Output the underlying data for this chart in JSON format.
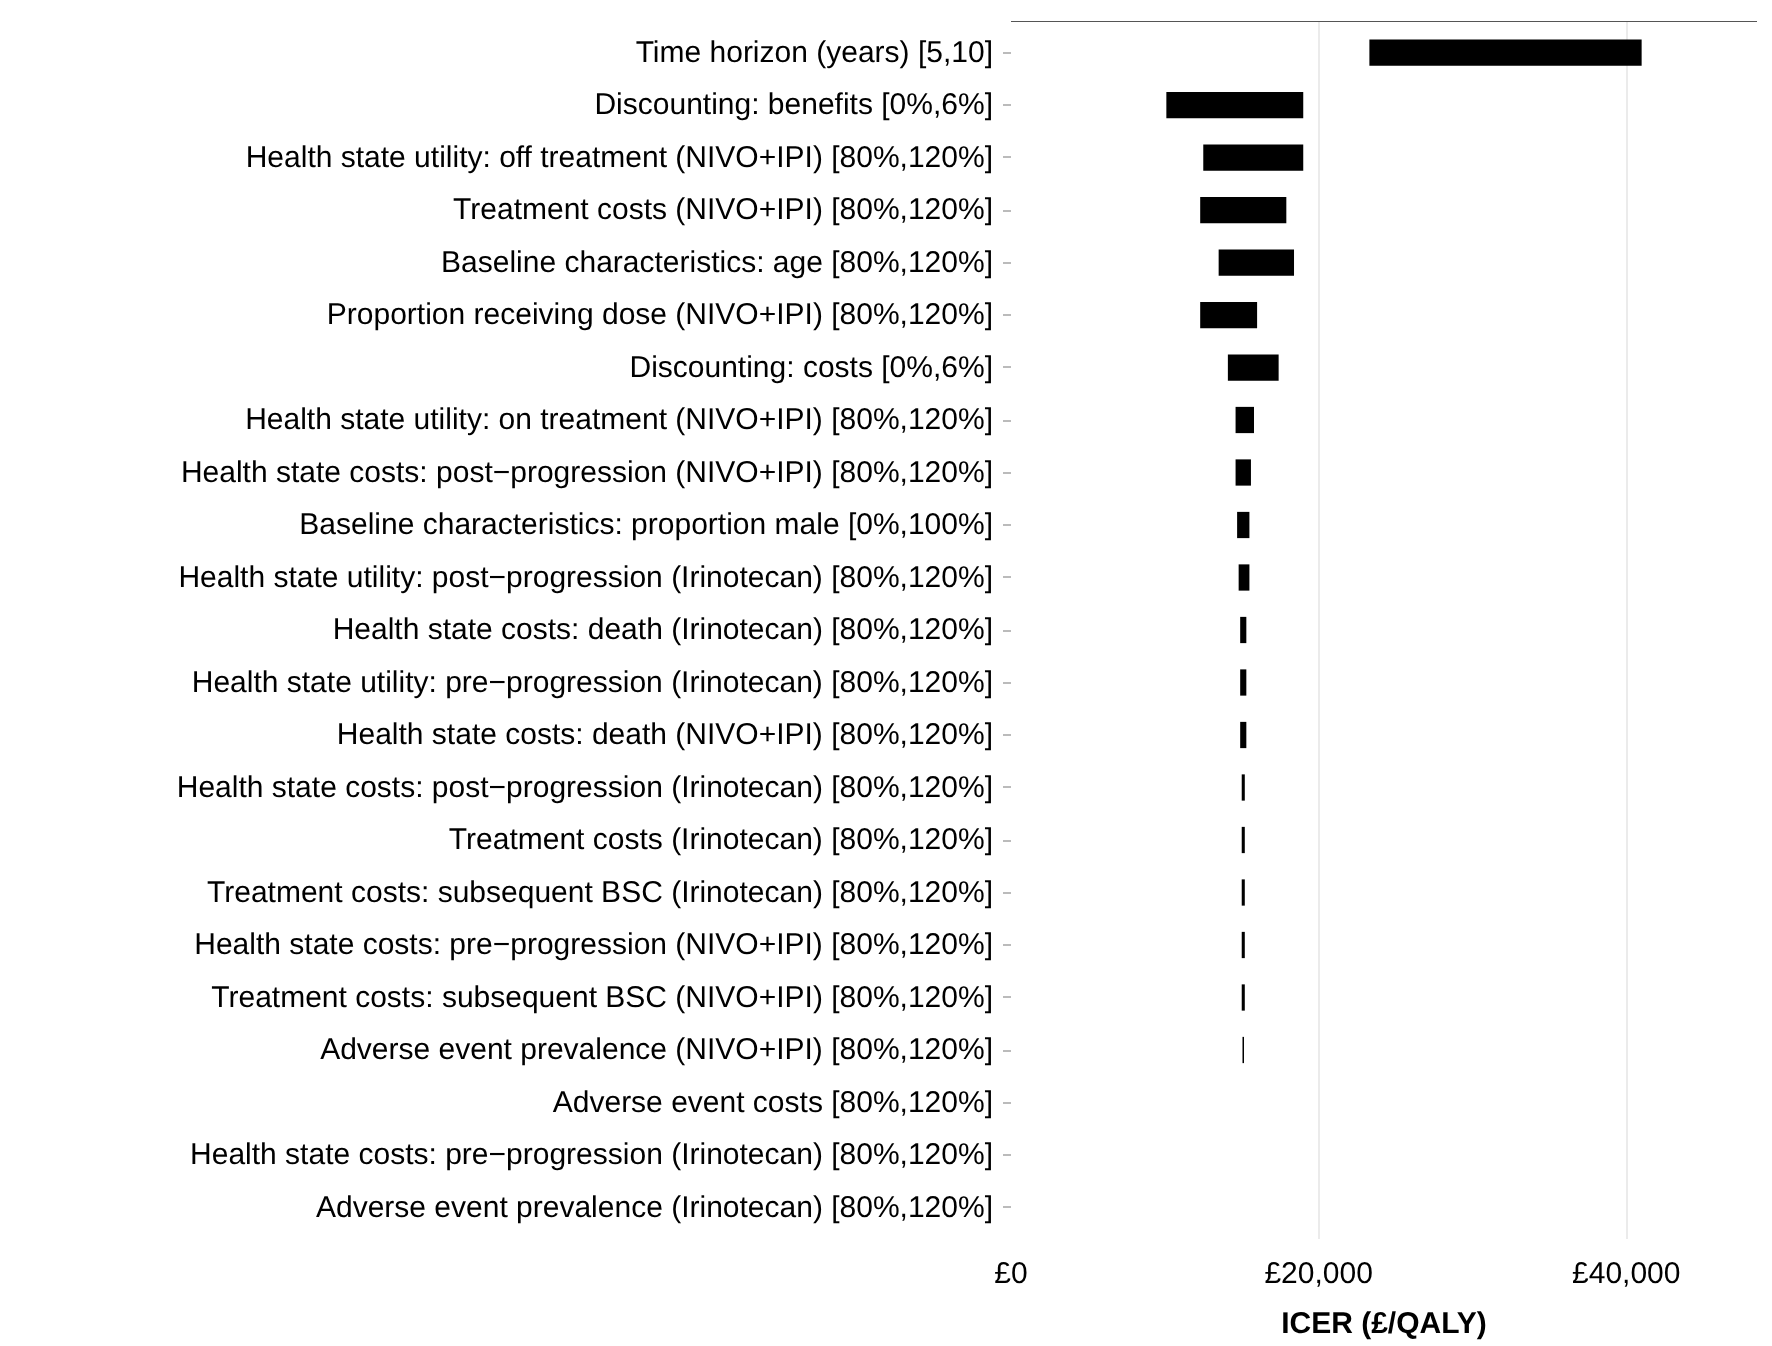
{
  "chart_data": {
    "type": "bar",
    "orientation": "horizontal",
    "xlabel": "ICER (£/QALY)",
    "categories": [
      "Time horizon (years) [5,10]",
      "Discounting: benefits [0%,6%]",
      "Health state utility: off treatment (NIVO+IPI) [80%,120%]",
      "Treatment costs (NIVO+IPI) [80%,120%]",
      "Baseline characteristics: age [80%,120%]",
      "Proportion receiving dose (NIVO+IPI) [80%,120%]",
      "Discounting: costs [0%,6%]",
      "Health state utility: on treatment (NIVO+IPI) [80%,120%]",
      "Health state costs: post−progression (NIVO+IPI) [80%,120%]",
      "Baseline characteristics: proportion male [0%,100%]",
      "Health state utility: post−progression (Irinotecan) [80%,120%]",
      "Health state costs: death (Irinotecan) [80%,120%]",
      "Health state utility: pre−progression (Irinotecan) [80%,120%]",
      "Health state costs: death (NIVO+IPI) [80%,120%]",
      "Health state costs: post−progression (Irinotecan) [80%,120%]",
      "Treatment costs (Irinotecan) [80%,120%]",
      "Treatment costs: subsequent BSC (Irinotecan) [80%,120%]",
      "Health state costs: pre−progression (NIVO+IPI) [80%,120%]",
      "Treatment costs: subsequent BSC (NIVO+IPI) [80%,120%]",
      "Adverse event prevalence (NIVO+IPI) [80%,120%]",
      "Adverse event costs [80%,120%]",
      "Health state costs: pre−progression (Irinotecan) [80%,120%]",
      "Adverse event prevalence (Irinotecan) [80%,120%]"
    ],
    "base": [
      23300,
      10100,
      12500,
      12300,
      13500,
      12300,
      14100,
      14600,
      14600,
      14700,
      14800,
      14900,
      14900,
      14900,
      15000,
      15000,
      15000,
      15000,
      15000,
      15050,
      null,
      null,
      null
    ],
    "values": [
      17700,
      8900,
      6500,
      5600,
      4900,
      3700,
      3300,
      1200,
      1000,
      800,
      700,
      400,
      400,
      400,
      200,
      200,
      200,
      200,
      200,
      100,
      null,
      null,
      null
    ],
    "color": "#000000",
    "xlim": [
      0,
      48500
    ],
    "xticks": [
      {
        "value": 0,
        "label": "£0"
      },
      {
        "value": 20000,
        "label": "£20,000"
      },
      {
        "value": 40000,
        "label": "£40,000"
      }
    ],
    "grid": "x"
  }
}
